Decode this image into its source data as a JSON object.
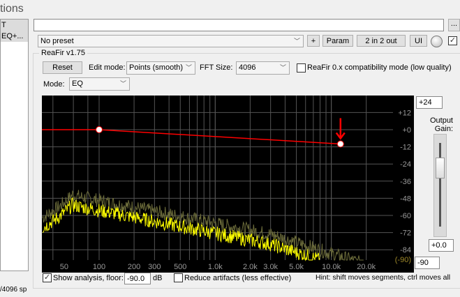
{
  "window": {
    "title_fragment": "tions",
    "list_item": "T EQ+...",
    "status_fragment": "/4096 sp"
  },
  "header": {
    "name_value": "",
    "more_label": "...",
    "preset": "No preset",
    "plus_label": "+",
    "param_label": "Param",
    "io_label": "2 in 2 out",
    "ui_label": "UI",
    "enabled": true
  },
  "plugin": {
    "group_title": "ReaFir v1.75",
    "reset_label": "Reset",
    "edit_mode_label": "Edit mode:",
    "edit_mode_value": "Points (smooth)",
    "fft_label": "FFT Size:",
    "fft_value": "4096",
    "compat_label": "ReaFir 0.x compatibility mode (low quality)",
    "compat_checked": false,
    "mode_label": "Mode:",
    "mode_value": "EQ"
  },
  "graph": {
    "db_ticks": [
      "+12",
      "+0",
      "-12",
      "-24",
      "-36",
      "-48",
      "-60",
      "-72",
      "-84"
    ],
    "floor_label": "(-90)",
    "freq_ticks": [
      "50",
      "100",
      "200",
      "300",
      "500",
      "1.0k",
      "2.0k",
      "3.0k",
      "5.0k",
      "10.0k",
      "20.0k"
    ],
    "eq_points": [
      {
        "freq_hz": 100,
        "gain_db": 0
      },
      {
        "freq_hz": 12000,
        "gain_db": -10
      }
    ],
    "colors": {
      "curve": "#ff0000",
      "analysis": "#ffff00",
      "analysis_peak": "#6b6b3a",
      "background": "#000000",
      "grid": "#555555"
    }
  },
  "gain": {
    "top_value": "+24",
    "label_line1": "Output",
    "label_line2": "Gain:",
    "value": "+0.0",
    "bottom_value": "-90",
    "level_db": 0
  },
  "footer": {
    "show_analysis_label": "Show analysis, floor:",
    "show_analysis_checked": true,
    "floor_value": "-90.0",
    "db_unit": "dB",
    "reduce_label": "Reduce artifacts (less effective)",
    "reduce_checked": false,
    "hint": "Hint: shift moves segments, ctrl moves all"
  }
}
